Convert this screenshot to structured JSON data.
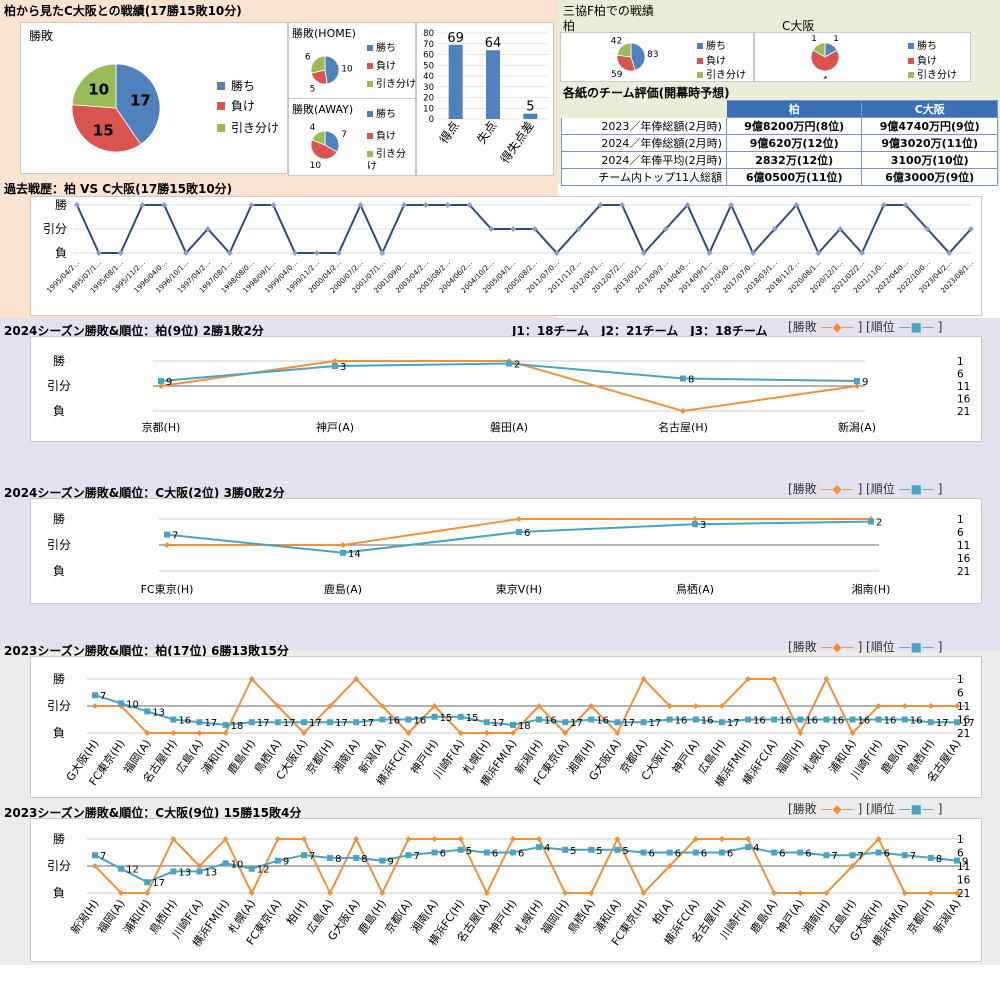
{
  "colors": {
    "win": "#4f81bd",
    "loss": "#d9534f",
    "draw": "#9bbb59",
    "result": "#f0913a",
    "rank": "#4ba3c3",
    "header": "#3b6fb6",
    "navy": "#2e4a7a"
  },
  "overall": {
    "title": "柏から見たC大阪との戦績(17勝15敗10分)",
    "pie_title": "勝敗",
    "home_title": "勝敗(HOME)",
    "away_title": "勝敗(AWAY)",
    "legend": [
      "勝ち",
      "負け",
      "引き分け"
    ]
  },
  "mikyo": {
    "title": "三協F柏での戦績",
    "kashiwa": "柏",
    "osaka": "C大阪"
  },
  "eval": {
    "title": "各紙のチーム評価(開幕時予想)",
    "col1": "柏",
    "col2": "C大阪",
    "rows": [
      {
        "label": "2023／年俸総額(2月時)",
        "a": "9億8200万円(8位)",
        "b": "9億4740万円(9位)"
      },
      {
        "label": "2024／年俸総額(2月時)",
        "a": "9億620万(12位)",
        "b": "9億3020万(11位)"
      },
      {
        "label": "2024／年俸平均(2月時)",
        "a": "2832万(12位)",
        "b": "3100万(10位)"
      },
      {
        "label": "チーム内トップ11人総額",
        "a": "6億0500万(11位)",
        "b": "6億3000万(9位)"
      }
    ]
  },
  "history_title": "過去戦歴：柏 VS C大阪(17勝15敗10分)",
  "season_titles": {
    "kashiwa2024": "2024シーズン勝敗&順位：柏(9位) 2勝1敗2分",
    "league_note": "J1：18チーム　J2：21チーム　J3：18チーム",
    "osaka2024": "2024シーズン勝敗&順位：C大阪(2位) 3勝0敗2分",
    "kashiwa2023": "2023シーズン勝敗&順位：柏(17位) 6勝13敗15分",
    "osaka2023": "2023シーズン勝敗&順位：C大阪(9位) 15勝15敗4分"
  },
  "line_legend": {
    "result": "勝敗",
    "rank": "順位"
  },
  "chart_data": [
    {
      "type": "pie",
      "id": "overall",
      "title": "勝敗",
      "categories": [
        "勝ち",
        "負け",
        "引き分け"
      ],
      "values": [
        17,
        15,
        10
      ]
    },
    {
      "type": "pie",
      "id": "home",
      "title": "勝敗(HOME)",
      "categories": [
        "勝ち",
        "負け",
        "引き分け"
      ],
      "values": [
        10,
        5,
        6
      ]
    },
    {
      "type": "pie",
      "id": "away",
      "title": "勝敗(AWAY)",
      "categories": [
        "勝ち",
        "負け",
        "引き分け"
      ],
      "values": [
        7,
        10,
        4
      ]
    },
    {
      "type": "bar",
      "id": "goals",
      "categories": [
        "得点",
        "失点",
        "得失点差"
      ],
      "values": [
        69,
        64,
        5
      ],
      "ylim": [
        0,
        80
      ],
      "yticks": [
        0,
        10,
        20,
        30,
        40,
        50,
        60,
        70,
        80
      ]
    },
    {
      "type": "pie",
      "id": "mikyo_kashiwa",
      "title": "柏",
      "categories": [
        "勝ち",
        "負け",
        "引き分け"
      ],
      "values": [
        83,
        59,
        42
      ]
    },
    {
      "type": "pie",
      "id": "mikyo_osaka",
      "title": "C大阪",
      "categories": [
        "勝ち",
        "負け",
        "引き分け"
      ],
      "values": [
        1,
        4,
        1
      ]
    },
    {
      "type": "line",
      "id": "history",
      "title": "過去戦歴：柏 VS C大阪(17勝15敗10分)",
      "y_categories": [
        "勝",
        "引分",
        "負"
      ],
      "x": [
        "1995/04/2…",
        "1995/07/1…",
        "1995/08/1…",
        "1995/11/2…",
        "1996/04/0…",
        "1996/10/1…",
        "1997/04/2…",
        "1997/08/1…",
        "1998/08/0…",
        "1998/09/1…",
        "1999/04/0…",
        "1999/11/2…",
        "2000/04/2…",
        "2000/07/2…",
        "2001/07/1…",
        "2001/09/0…",
        "2003/04/2…",
        "2003/08/2…",
        "2004/06/2…",
        "2004/10/2…",
        "2005/04/1…",
        "2005/08/2…",
        "2011/07/0…",
        "2011/11/2…",
        "2012/05/1…",
        "2012/07/2…",
        "2013/05/1…",
        "2013/09/2…",
        "2014/04/0…",
        "2014/09/1…",
        "2017/05/0…",
        "2017/07/0…",
        "2018/03/1…",
        "2018/11/2…",
        "2020/08/1…",
        "2020/12/1…",
        "2021/02/2…",
        "2021/11/0…",
        "2022/04/0…",
        "2022/10/0…",
        "2023/04/2…",
        "2023/08/1…"
      ],
      "values": [
        1,
        -1,
        -1,
        1,
        1,
        -1,
        0,
        -1,
        1,
        1,
        -1,
        -1,
        -1,
        1,
        -1,
        1,
        1,
        1,
        1,
        0,
        0,
        0,
        -1,
        0,
        1,
        1,
        -1,
        0,
        1,
        -1,
        1,
        -1,
        0,
        1,
        -1,
        0,
        -1,
        1,
        1,
        0,
        -1,
        0
      ]
    },
    {
      "type": "line",
      "id": "kashiwa2024",
      "title": "2024シーズン勝敗&順位：柏(9位) 2勝1敗2分",
      "x": [
        "京都(H)",
        "神戸(A)",
        "磐田(A)",
        "名古屋(H)",
        "新潟(A)"
      ],
      "y_categories": [
        "勝",
        "引分",
        "負"
      ],
      "rank_ylim": [
        21,
        1
      ],
      "rank_ticks": [
        1,
        6,
        11,
        16,
        21
      ],
      "series": [
        {
          "name": "勝敗",
          "values": [
            0,
            1,
            1,
            -1,
            0
          ]
        },
        {
          "name": "順位",
          "values": [
            9,
            3,
            2,
            8,
            9
          ]
        }
      ]
    },
    {
      "type": "line",
      "id": "osaka2024",
      "title": "2024シーズン勝敗&順位：C大阪(2位) 3勝0敗2分",
      "x": [
        "FC東京(H)",
        "鹿島(A)",
        "東京V(H)",
        "鳥栖(A)",
        "湘南(H)"
      ],
      "y_categories": [
        "勝",
        "引分",
        "負"
      ],
      "rank_ylim": [
        21,
        1
      ],
      "rank_ticks": [
        1,
        6,
        11,
        16,
        21
      ],
      "series": [
        {
          "name": "勝敗",
          "values": [
            0,
            0,
            1,
            1,
            1
          ]
        },
        {
          "name": "順位",
          "values": [
            7,
            14,
            6,
            3,
            2
          ]
        }
      ]
    },
    {
      "type": "line",
      "id": "kashiwa2023",
      "title": "2023シーズン勝敗&順位：柏(17位) 6勝13敗15分",
      "x": [
        "G大阪(H)",
        "FC東京(H)",
        "福岡(A)",
        "名古屋(H)",
        "広島(A)",
        "浦和(H)",
        "鹿島(H)",
        "鳥栖(A)",
        "C大阪(A)",
        "京都(H)",
        "湘南(A)",
        "新潟(A)",
        "横浜FC(H)",
        "神戸(H)",
        "川崎F(A)",
        "札幌(H)",
        "横浜FM(A)",
        "新潟(H)",
        "FC東京(A)",
        "湘南(H)",
        "G大阪(A)",
        "京都(A)",
        "C大阪(H)",
        "神戸(A)",
        "広島(H)",
        "横浜FM(H)",
        "横浜FC(A)",
        "福岡(H)",
        "札幌(A)",
        "浦和(A)",
        "川崎F(H)",
        "鹿島(A)",
        "鳥栖(H)",
        "名古屋(A)"
      ],
      "y_categories": [
        "勝",
        "引分",
        "負"
      ],
      "rank_ylim": [
        21,
        1
      ],
      "rank_ticks": [
        1,
        6,
        11,
        16,
        21
      ],
      "series": [
        {
          "name": "勝敗",
          "values": [
            0,
            0,
            -1,
            -1,
            -1,
            -1,
            1,
            0,
            -1,
            0,
            1,
            0,
            -1,
            0,
            -1,
            -1,
            -1,
            0,
            -1,
            0,
            -1,
            1,
            0,
            0,
            0,
            1,
            1,
            -1,
            1,
            -1,
            0,
            0,
            0,
            0
          ]
        },
        {
          "name": "順位",
          "values": [
            7,
            10,
            13,
            16,
            17,
            18,
            17,
            17,
            17,
            17,
            17,
            16,
            16,
            15,
            15,
            17,
            18,
            16,
            17,
            16,
            17,
            17,
            16,
            16,
            17,
            16,
            16,
            16,
            16,
            16,
            16,
            16,
            17,
            17
          ]
        }
      ]
    },
    {
      "type": "line",
      "id": "osaka2023",
      "title": "2023シーズン勝敗&順位：C大阪(9位) 15勝15敗4分",
      "x": [
        "新潟(H)",
        "福岡(A)",
        "浦和(H)",
        "鳥栖(H)",
        "川崎F(A)",
        "横浜FM(H)",
        "札幌(A)",
        "FC東京(A)",
        "柏(H)",
        "広島(A)",
        "G大阪(A)",
        "鹿島(H)",
        "京都(A)",
        "湘南(A)",
        "横浜FC(H)",
        "名古屋(A)",
        "神戸(H)",
        "札幌(H)",
        "福岡(H)",
        "鳥栖(A)",
        "浦和(A)",
        "FC東京(H)",
        "柏(A)",
        "横浜FC(A)",
        "名古屋(H)",
        "川崎F(H)",
        "鹿島(A)",
        "神戸(A)",
        "湘南(H)",
        "広島(H)",
        "G大阪(H)",
        "横浜FM(A)",
        "京都(H)",
        "新潟(A)"
      ],
      "y_categories": [
        "勝",
        "引分",
        "負"
      ],
      "rank_ylim": [
        21,
        1
      ],
      "rank_ticks": [
        1,
        6,
        11,
        16,
        21
      ],
      "series": [
        {
          "name": "勝敗",
          "values": [
            0,
            -1,
            -1,
            1,
            0,
            1,
            -1,
            1,
            1,
            -1,
            1,
            -1,
            1,
            1,
            1,
            -1,
            1,
            1,
            -1,
            -1,
            1,
            -1,
            0,
            1,
            1,
            1,
            -1,
            -1,
            -1,
            0,
            1,
            -1,
            -1,
            -1
          ]
        },
        {
          "name": "順位",
          "values": [
            7,
            12,
            17,
            13,
            13,
            10,
            12,
            9,
            7,
            8,
            8,
            9,
            7,
            6,
            5,
            6,
            6,
            4,
            5,
            5,
            5,
            6,
            6,
            6,
            6,
            4,
            6,
            6,
            7,
            7,
            6,
            7,
            8,
            9
          ]
        }
      ]
    }
  ]
}
